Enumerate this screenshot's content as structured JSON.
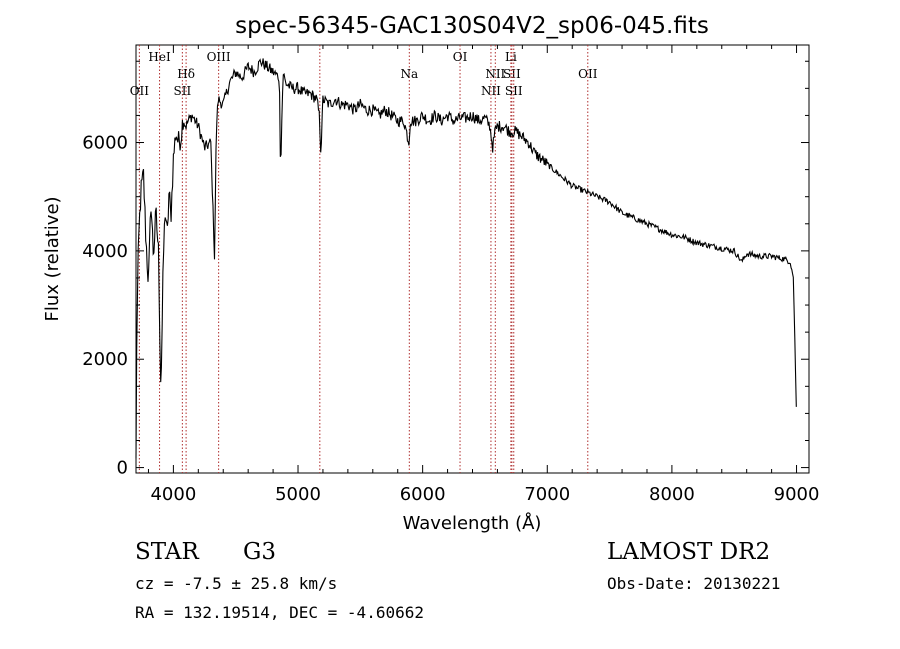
{
  "chart_data": {
    "type": "line",
    "title": "spec-56345-GAC130S04V2_sp06-045.fits",
    "xlabel": "Wavelength (Å)",
    "ylabel": "Flux (relative)",
    "xlim": [
      3700,
      9100
    ],
    "ylim": [
      -100,
      7800
    ],
    "x_ticks": [
      4000,
      5000,
      6000,
      7000,
      8000,
      9000
    ],
    "y_ticks": [
      0,
      2000,
      4000,
      6000
    ],
    "grid": false,
    "series": [
      {
        "x": [
          3700,
          3705,
          3715,
          3725,
          3740,
          3760,
          3780,
          3800,
          3820,
          3840,
          3860,
          3880,
          3900,
          3920,
          3935,
          3950,
          3965,
          3980,
          4000,
          4020,
          4040,
          4060,
          4080,
          4100,
          4120,
          4150,
          4200,
          4250,
          4300,
          4330,
          4345,
          4360,
          4400,
          4450,
          4500,
          4550,
          4600,
          4650,
          4700,
          4750,
          4800,
          4850,
          4860,
          4880,
          4900,
          4950,
          5000,
          5050,
          5100,
          5150,
          5170,
          5184,
          5200,
          5250,
          5300,
          5350,
          5400,
          5450,
          5500,
          5550,
          5600,
          5650,
          5700,
          5750,
          5800,
          5850,
          5890,
          5900,
          5950,
          6000,
          6050,
          6100,
          6150,
          6200,
          6250,
          6300,
          6350,
          6400,
          6450,
          6500,
          6540,
          6563,
          6580,
          6600,
          6650,
          6700,
          6750,
          6800,
          6850,
          6900,
          6950,
          7000,
          7050,
          7100,
          7150,
          7200,
          7300,
          7400,
          7500,
          7600,
          7700,
          7800,
          7900,
          8000,
          8100,
          8200,
          8300,
          8400,
          8500,
          8560,
          8600,
          8700,
          8800,
          8900,
          8950,
          8975,
          8990,
          9000
        ],
        "values": [
          100,
          2100,
          3600,
          4400,
          5100,
          5400,
          4200,
          3400,
          4900,
          3900,
          4700,
          4000,
          1400,
          3900,
          4800,
          4200,
          5100,
          4600,
          5700,
          6200,
          6000,
          6100,
          6500,
          6300,
          6400,
          6500,
          6300,
          5900,
          6000,
          3900,
          6300,
          6800,
          6700,
          7100,
          7300,
          7200,
          7400,
          7300,
          7500,
          7400,
          7300,
          7200,
          5500,
          7300,
          7100,
          7000,
          7000,
          6900,
          6900,
          6800,
          6500,
          5800,
          6800,
          6700,
          6800,
          6700,
          6700,
          6600,
          6700,
          6600,
          6600,
          6500,
          6600,
          6500,
          6400,
          6400,
          6000,
          6400,
          6400,
          6500,
          6400,
          6500,
          6400,
          6500,
          6400,
          6450,
          6450,
          6500,
          6400,
          6450,
          6300,
          5900,
          6200,
          6300,
          6300,
          6200,
          6200,
          6100,
          6000,
          5800,
          5700,
          5600,
          5500,
          5400,
          5300,
          5200,
          5100,
          5000,
          4900,
          4700,
          4600,
          4500,
          4400,
          4300,
          4250,
          4150,
          4100,
          4050,
          4000,
          3800,
          3950,
          3900,
          3900,
          3850,
          3800,
          3500,
          2000,
          900
        ]
      }
    ],
    "line_markers": [
      {
        "label": "OII",
        "x": 3727,
        "row": 2
      },
      {
        "label": "HeI",
        "x": 3889,
        "row": 0
      },
      {
        "label": "Hδ",
        "x": 4102,
        "row": 1
      },
      {
        "label": "SII",
        "x": 4072,
        "row": 2
      },
      {
        "label": "OIII",
        "x": 4363,
        "row": 0
      },
      {
        "label": "",
        "x": 5175,
        "row": 0
      },
      {
        "label": "Na",
        "x": 5893,
        "row": 1
      },
      {
        "label": "OI",
        "x": 6300,
        "row": 0
      },
      {
        "label": "NII",
        "x": 6548,
        "row": 2
      },
      {
        "label": "NII",
        "x": 6583,
        "row": 1
      },
      {
        "label": "Li",
        "x": 6708,
        "row": 0
      },
      {
        "label": "SII",
        "x": 6716,
        "row": 1
      },
      {
        "label": "SII",
        "x": 6731,
        "row": 2
      },
      {
        "label": "OII",
        "x": 7325,
        "row": 1
      }
    ]
  },
  "info": {
    "object_class": "STAR",
    "subclass": "G3",
    "survey": "LAMOST DR2",
    "velocity": "cz = -7.5 ± 25.8 km/s",
    "obs_date": "Obs-Date: 20130221",
    "coordinates": "RA = 132.19514, DEC =  -4.60662"
  }
}
